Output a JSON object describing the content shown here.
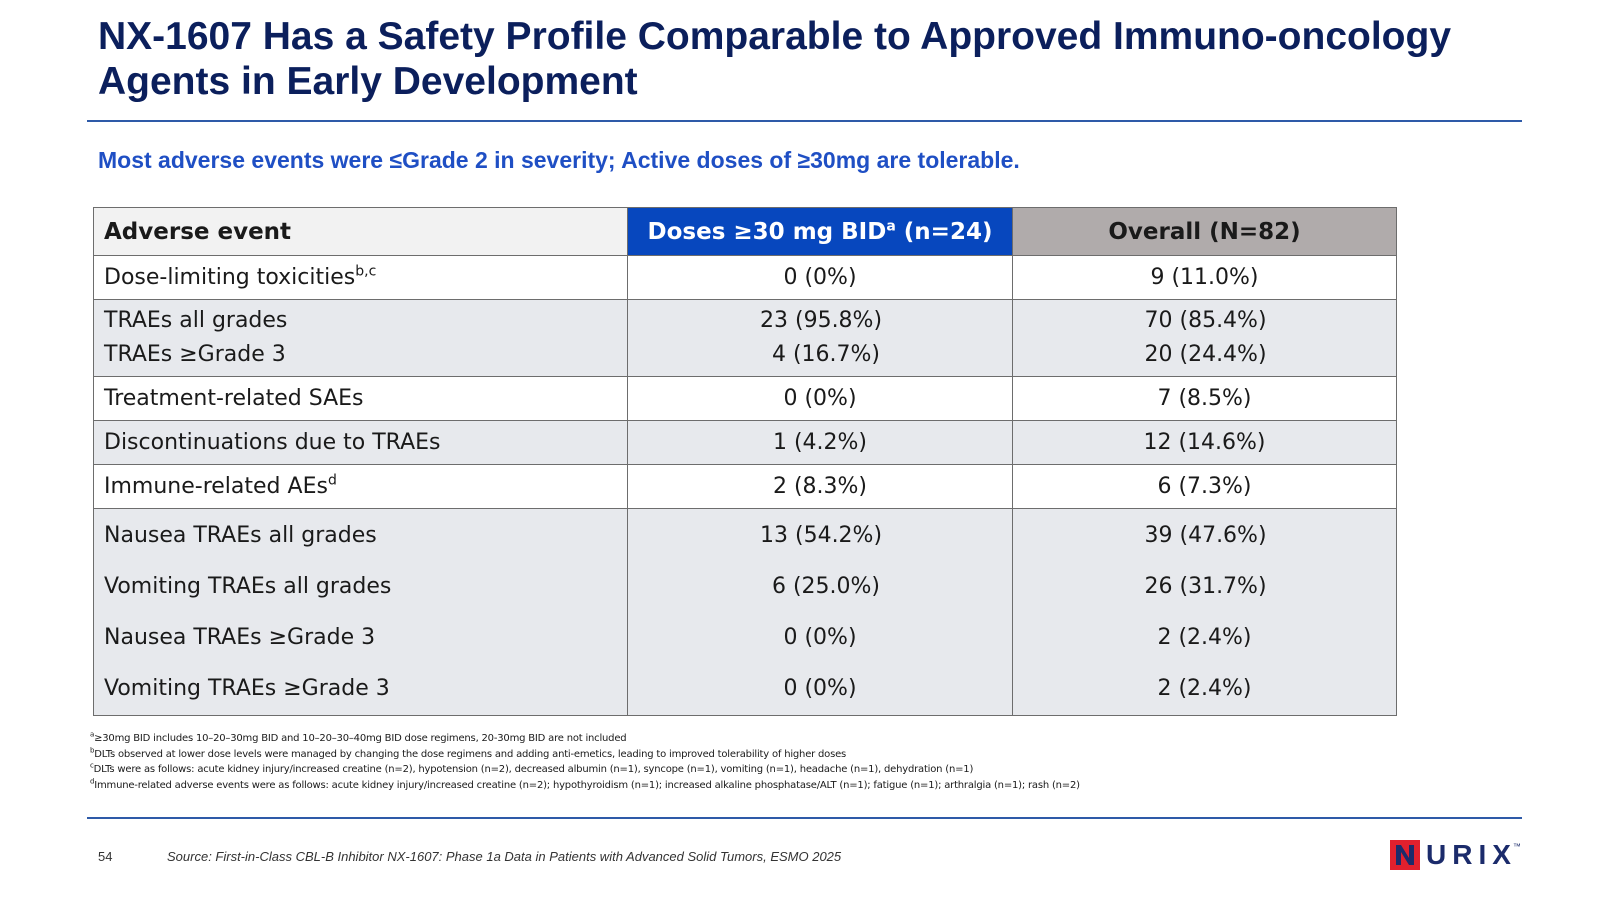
{
  "slide": {
    "title": "NX-1607 Has a Safety Profile Comparable to Approved Immuno-oncology Agents in Early Development",
    "subtitle": "Most adverse events were ≤Grade 2 in severity; Active doses of ≥30mg are tolerable."
  },
  "table": {
    "headers": {
      "adverse_event": "Adverse event",
      "dose_group": "Doses ≥30 mg BID",
      "dose_group_sup": "a",
      "dose_group_n": " (n=24)",
      "overall": "Overall (N=82)"
    },
    "rows": [
      {
        "label": "Dose-limiting toxicities",
        "label_sup": "b,c",
        "dose": "0 (0%)",
        "overall": "9 (11.0%)"
      },
      {
        "label": "TRAEs all grades",
        "dose": "23 (95.8%)",
        "overall": "70 (85.4%)"
      },
      {
        "label": "TRAEs ≥Grade 3",
        "dose": "4 (16.7%)",
        "overall": "20 (24.4%)"
      },
      {
        "label": "Treatment-related SAEs",
        "dose": "0 (0%)",
        "overall": "7 (8.5%)"
      },
      {
        "label": "Discontinuations due to TRAEs",
        "dose": "1 (4.2%)",
        "overall": "12 (14.6%)"
      },
      {
        "label": "Immune-related AEs",
        "label_sup": "d",
        "dose": "2 (8.3%)",
        "overall": "6 (7.3%)"
      },
      {
        "label": "Nausea TRAEs all grades",
        "dose": "13 (54.2%)",
        "overall": "39 (47.6%)"
      },
      {
        "label": "Vomiting TRAEs all grades",
        "dose": "6 (25.0%)",
        "overall": "26 (31.7%)"
      },
      {
        "label": "Nausea TRAEs ≥Grade 3",
        "dose": "0 (0%)",
        "overall": "2 (2.4%)"
      },
      {
        "label": "Vomiting TRAEs ≥Grade 3",
        "dose": "0 (0%)",
        "overall": "2 (2.4%)"
      }
    ]
  },
  "footnotes": [
    {
      "marker": "a",
      "text": "≥30mg BID includes 10–20–30mg BID and 10–20–30–40mg BID dose regimens, 20-30mg BID are not included"
    },
    {
      "marker": "b",
      "text": "DLTs observed at lower dose levels were managed by changing the dose regimens and adding anti-emetics, leading to improved tolerability of higher doses"
    },
    {
      "marker": "c",
      "text": "DLTs were as follows: acute kidney injury/increased creatine (n=2), hypotension (n=2), decreased albumin (n=1), syncope (n=1), vomiting (n=1), headache (n=1), dehydration (n=1)"
    },
    {
      "marker": "d",
      "text": "Immune-related adverse events were as follows: acute kidney injury/increased creatine (n=2); hypothyroidism (n=1); increased alkaline phosphatase/ALT (n=1); fatigue (n=1); arthralgia (n=1); rash (n=2)"
    }
  ],
  "footer": {
    "page_number": "54",
    "source": "Source: First-in-Class CBL-B Inhibitor NX-1607: Phase 1a Data in Patients with Advanced Solid Tumors, ESMO 2025",
    "logo_text": "NURIX",
    "logo_tm": "™"
  },
  "colors": {
    "title": "#0b1f5c",
    "subtitle": "#1f4fc4",
    "rule": "#2e5aa8",
    "dose_header_bg": "#0747be",
    "overall_header_bg": "#b0abab",
    "row_grey_bg": "#e7e9ed",
    "logo_red": "#e0202e",
    "logo_navy": "#1b2b6b"
  }
}
